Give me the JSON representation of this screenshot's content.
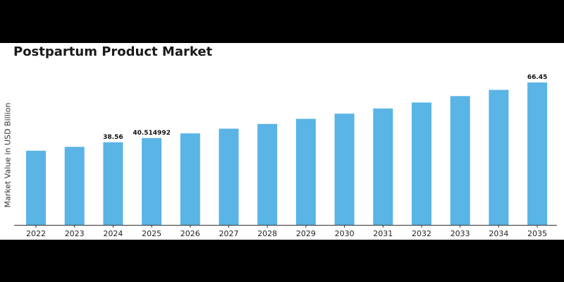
{
  "chart_data": {
    "type": "bar",
    "title": "Postpartum Product Market",
    "xlabel": "",
    "ylabel": "Market Value in USD Billion",
    "categories": [
      "2022",
      "2023",
      "2024",
      "2025",
      "2026",
      "2027",
      "2028",
      "2029",
      "2030",
      "2031",
      "2032",
      "2033",
      "2034",
      "2035"
    ],
    "values": [
      34.6,
      36.4,
      38.56,
      40.514992,
      42.7,
      44.9,
      47.1,
      49.5,
      51.9,
      54.3,
      57.1,
      60.1,
      63.0,
      66.45
    ],
    "data_labels": [
      {
        "category": "2024",
        "text": "38.56"
      },
      {
        "category": "2025",
        "text": "40.514992"
      },
      {
        "category": "2035",
        "text": "66.45"
      }
    ],
    "ylim": [
      0,
      66.45
    ],
    "grid": false,
    "legend": "none",
    "bar_color": "#5ab4e5"
  }
}
